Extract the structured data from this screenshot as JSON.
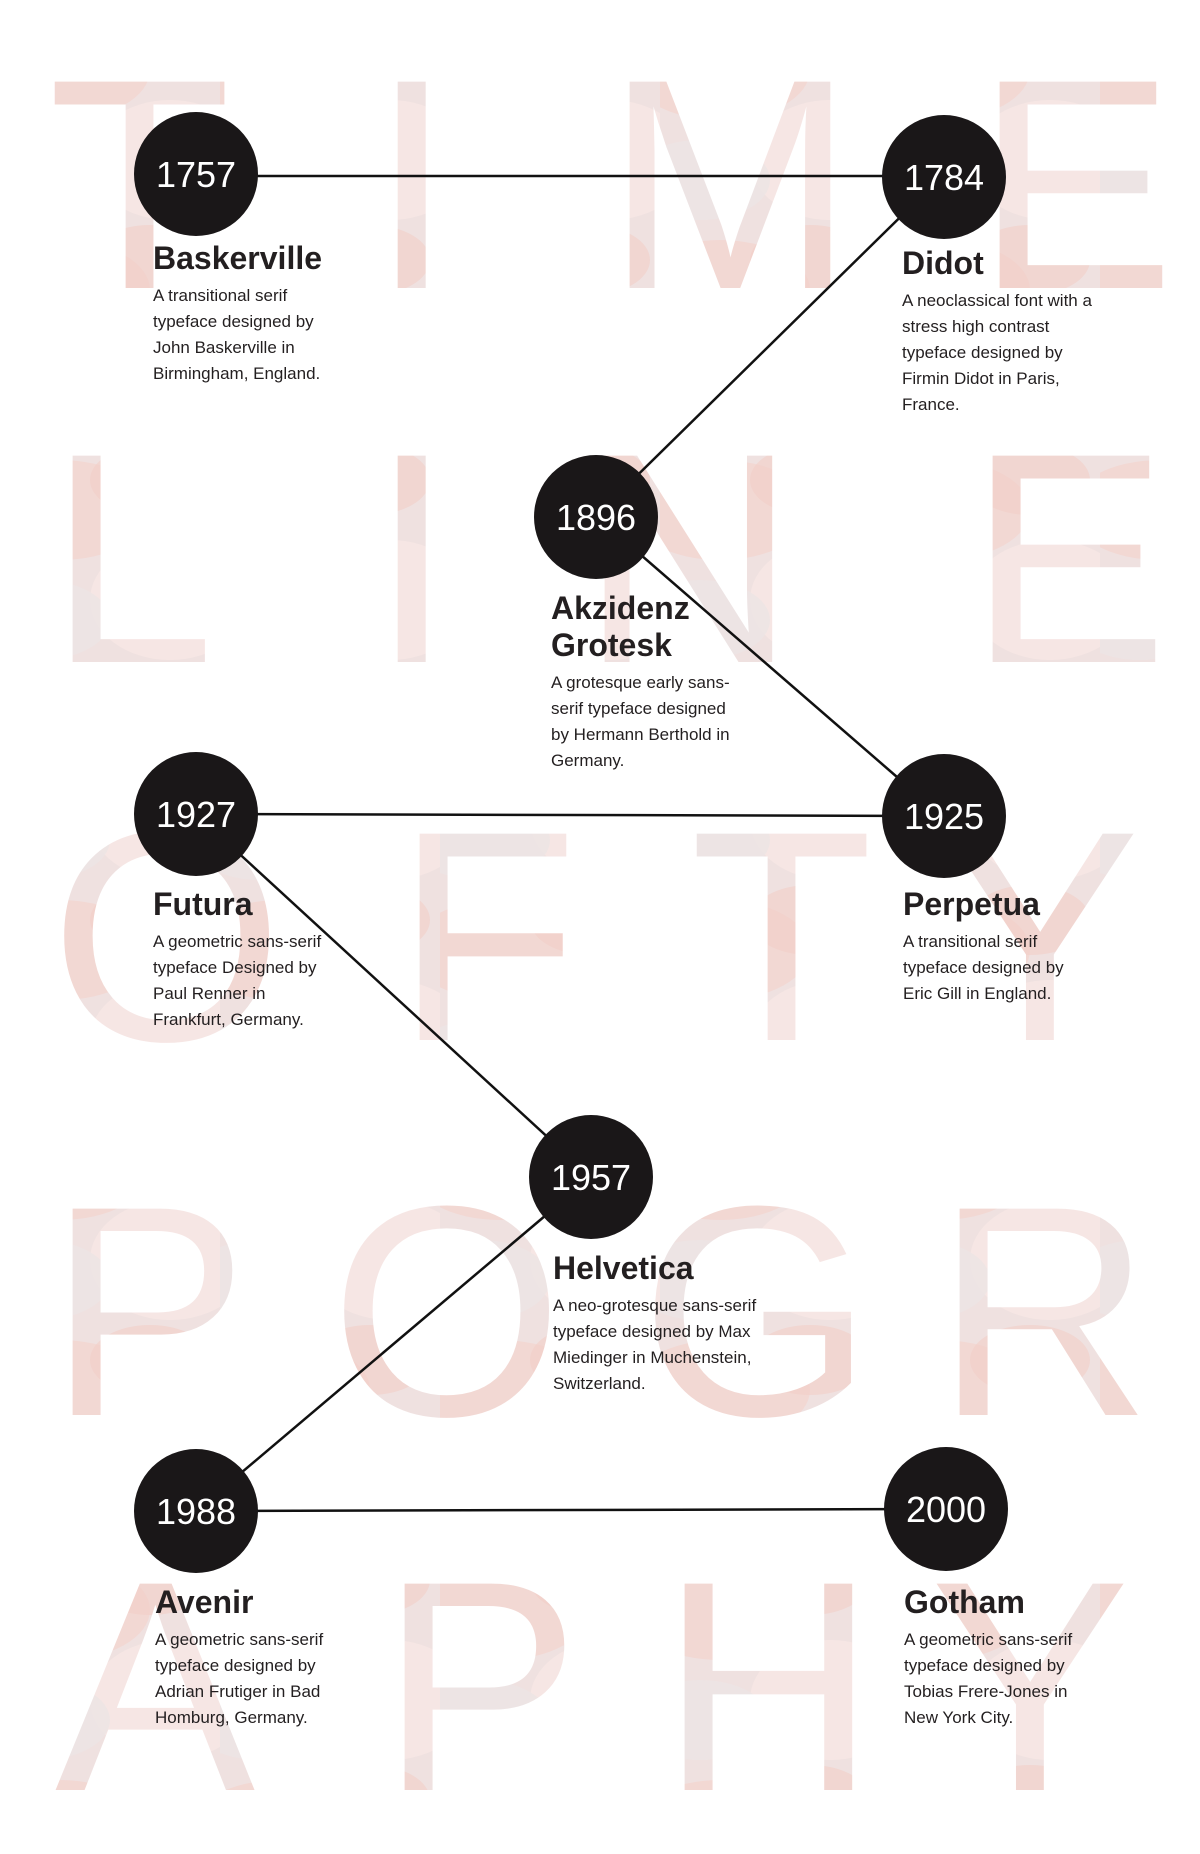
{
  "title_letters": {
    "row1": [
      "T",
      "I",
      "M",
      "E"
    ],
    "row2": [
      "L",
      "I",
      "N",
      "E"
    ],
    "row3": [
      "O",
      "F",
      "T",
      "Y"
    ],
    "row4": [
      "P",
      "O",
      "G",
      "R"
    ],
    "row5": [
      "A",
      "P",
      "H",
      "Y"
    ]
  },
  "colors": {
    "node": "#1a1718",
    "line": "#111111",
    "text": "#231f20",
    "letter_fill": "#f4d8d4"
  },
  "timeline": [
    {
      "year": "1757",
      "name": "Baskerville",
      "description": "A transitional serif typeface designed by John Baskerville in Birmingham, England."
    },
    {
      "year": "1784",
      "name": "Didot",
      "description": "A neoclassical font with a stress high contrast typeface designed by Firmin Didot in Paris, France."
    },
    {
      "year": "1896",
      "name": "Akzidenz Grotesk",
      "description": "A grotesque early sans-serif typeface designed by Hermann Berthold in Germany."
    },
    {
      "year": "1925",
      "name": "Perpetua",
      "description": "A transitional serif typeface designed by Eric Gill in England."
    },
    {
      "year": "1927",
      "name": "Futura",
      "description": "A geometric sans-serif typeface Designed by Paul Renner in Frankfurt, Germany."
    },
    {
      "year": "1957",
      "name": "Helvetica",
      "description": "A neo-grotesque sans-serif typeface designed by Max Miedinger in Muchenstein, Switzerland."
    },
    {
      "year": "1988",
      "name": "Avenir",
      "description": "A geometric sans-serif typeface designed by Adrian Frutiger in Bad Homburg, Germany."
    },
    {
      "year": "2000",
      "name": "Gotham",
      "description": "A geometric sans-serif typeface designed by Tobias Frere-Jones in New York City."
    }
  ]
}
